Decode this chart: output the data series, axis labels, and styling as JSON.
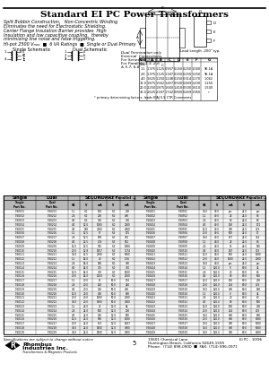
{
  "title": "Standard EI PC Power Transformers",
  "desc1": "Split Bobbin Construction,   Non-Concentric Winding",
  "desc2": "Eliminates the need for Electrostatic Shielding.",
  "desc3": "Center Flange Insulation Barrier provides  High",
  "desc4": "Insulation and low capacitive coupling,  thereby",
  "desc5": "minimizing line noise and false triggering.",
  "desc6": "Hi-pot 2500 Vₘₐₓ  ■  6 VA Ratings  ■  Single or Dual Primary",
  "note1": "Dual Termination only",
  "note2": "External  Connections.",
  "note3": "For Series:   2-3 & 6-7",
  "note4": "For Parallel:  1-3, 2-6",
  "note5": "& 5-7, 6-8",
  "lead_length": "Lead Length .200\" typ.",
  "size_hdr": [
    "Size",
    "A",
    "B",
    "C",
    "D",
    "E",
    "F",
    "G"
  ],
  "size_rows": [
    [
      "(VA)",
      "",
      "",
      "",
      "",
      "",
      "",
      ""
    ],
    [
      "1.1",
      "1.375",
      "1.125",
      "0.937",
      "0.250",
      "0.250",
      "1.000",
      "96.1A"
    ],
    [
      "2.6",
      "1.375",
      "1.125",
      "1.187",
      "0.250",
      "0.250",
      "1.250",
      "96.1A"
    ],
    [
      "4.0",
      "1.625",
      "1.250",
      "1.248",
      "0.250",
      "0.314",
      "1.270",
      "1.062"
    ],
    [
      "12.0",
      "1.875",
      "1.562",
      "1.457",
      "0.500",
      "0.469",
      "1.430",
      "1.250"
    ],
    [
      "20.0",
      "2.250",
      "1.875",
      "1.660",
      "1.418",
      "0.500",
      "1.610",
      "1.500"
    ],
    [
      "36.0",
      "2.625",
      "2.187",
      "1.742",
      "0.800",
      "0.469",
      "1.950",
      "*"
    ],
    [
      "* primary determining factors: leads EIAJ 5.5 CTR Comments"
    ]
  ],
  "main_hdr1_left": "Single",
  "main_hdr1_right": "SECONDARY",
  "main_hdr1_right2": "Parallel",
  "main_hdr1_far": "Single",
  "main_hdr1_far_right": "SECONDARY",
  "main_hdr1_far_right2": "Parallel",
  "col_headers": [
    "Single\nPart No.",
    "Dual\nPart No.",
    "VA",
    "V",
    "-- Secondary --\nmA",
    "V",
    "-- Parallel --\nmA"
  ],
  "data_rows": [
    [
      "T-60101",
      "T-60201",
      "1.1",
      "6.0",
      "100",
      "6.0",
      "200"
    ],
    [
      "T-60102",
      "T-60202",
      "2.6",
      "6.0",
      "200",
      "6.0",
      "400"
    ],
    [
      "T-60103",
      "T-60203",
      "4.0",
      "6.0",
      "350",
      "6.0",
      "700"
    ],
    [
      "T-60104",
      "T-60204",
      "4.0",
      "12.0",
      "1000",
      "6.0",
      "2000"
    ],
    [
      "T-60105",
      "T-60205",
      "4.0",
      "160",
      "2000",
      "6.0",
      "4000"
    ],
    [
      "T-60106",
      "T-60206",
      "1.1",
      "12.0",
      "87",
      "6.3",
      "175"
    ],
    [
      "T-60107",
      "T-60207",
      "2.6",
      "12.5",
      "190",
      "6.3",
      "381"
    ],
    [
      "T-60108",
      "T-60208",
      "4.0",
      "12.5",
      "478",
      "6.3",
      "952"
    ],
    [
      "T-60109",
      "T-60209",
      "12.0",
      "12.5",
      "965",
      "6.3",
      "1906"
    ],
    [
      "T-60110",
      "T-60210",
      "20.0",
      "12.8",
      "1657",
      "6.3",
      "3174"
    ],
    [
      "T-60111",
      "T-60211",
      "36.0",
      "12.5",
      "2800",
      "6.3",
      "6000"
    ],
    [
      "T-60112",
      "T-60212",
      "1.1",
      "14.0",
      "49",
      "6.3",
      "1.56"
    ],
    [
      "T-60113",
      "T-60213",
      "2.6",
      "14.0",
      "160",
      "6.0",
      "300"
    ],
    [
      "T-60114",
      "T-60214",
      "4.0",
      "14.0",
      "375",
      "6.0",
      "750"
    ],
    [
      "T-60115",
      "T-60215",
      "12.0",
      "14.0",
      "750",
      "6.0",
      "1500"
    ],
    [
      "T-60116",
      "T-60216",
      "20.0",
      "14.0",
      "1250",
      "6.0",
      "2500"
    ],
    [
      "T-60117",
      "T-60217",
      "1.1",
      "20.0",
      "55",
      "50.0",
      "110"
    ],
    [
      "T-60118",
      "T-60218",
      "2.6",
      "20.0",
      "120",
      "50.0",
      "240"
    ],
    [
      "T-60119",
      "T-60219",
      "4.0",
      "20.0",
      "200",
      "50.0",
      "400"
    ],
    [
      "T-60120",
      "T-60220",
      "12.0",
      "20.0",
      "400",
      "50.0",
      "800"
    ],
    [
      "T-60121",
      "T-60221",
      "20.0",
      "20.0",
      "1000",
      "50.0",
      "2000"
    ],
    [
      "T-60122",
      "T-60222",
      "36.0",
      "20.0",
      "1000",
      "50.0",
      "2000"
    ],
    [
      "T-60123",
      "T-60223",
      "36.0",
      "20.0",
      "1600",
      "50.0",
      "3000"
    ],
    [
      "T-60124",
      "T-60224",
      "1.1",
      "24.0",
      "45",
      "12.0",
      "84"
    ],
    [
      "T-60125",
      "T-60225",
      "2.6",
      "24.0",
      "500",
      "12.0",
      "2000"
    ],
    [
      "T-60126",
      "T-60226",
      "4.0",
      "24.0",
      "250",
      "12.0",
      "500"
    ],
    [
      "T-60127",
      "T-60227",
      "12.0",
      "24.0",
      "900",
      "12.0",
      "1000"
    ],
    [
      "T-60128",
      "T-60228",
      "20.0",
      "24.0",
      "833",
      "12.0",
      "1667"
    ],
    [
      "T-60129",
      "T-60229",
      "36.0",
      "24.0",
      "1500",
      "12.0",
      "3000"
    ]
  ],
  "data_rows_right": [
    [
      "T-60401",
      "T-60501",
      "36.0",
      "40.0",
      "psc",
      "24.0",
      "psc"
    ],
    [
      "T-60402",
      "T-60502",
      "1.1",
      "40.0",
      "23",
      "24.0",
      "86"
    ],
    [
      "T-60403",
      "T-60503",
      "2.6",
      "40.0",
      "60",
      "24.0",
      "88"
    ],
    [
      "T-60404",
      "T-60504",
      "4.0",
      "40.0",
      "100",
      "24.0",
      "171"
    ],
    [
      "T-60405",
      "T-60505",
      "12.0",
      "40.0",
      "300",
      "24.0",
      "419"
    ],
    [
      "T-60406",
      "T-60506",
      "20.0",
      "40.0",
      "500",
      "24.0",
      "17"
    ],
    [
      "T-60407",
      "T-60507",
      "36.0",
      "40.0",
      "857",
      "24.0",
      "714"
    ],
    [
      "T-60408",
      "T-60508",
      "1.1",
      "48.0",
      "23",
      "24.0",
      "86"
    ],
    [
      "T-60409",
      "T-60509",
      "2.6",
      "48.0",
      "83",
      "24.0",
      "165"
    ],
    [
      "T-60410",
      "T-60510",
      "4.0",
      "48.0",
      "167",
      "24.0",
      "333"
    ],
    [
      "T-60411",
      "T-60511",
      "12.0",
      "48.0",
      "500",
      "24.0",
      "1000"
    ],
    [
      "T-60412",
      "T-60512",
      "20.0",
      "48.0",
      "1000",
      "24.0",
      "6000"
    ],
    [
      "T-60413",
      "T-60513",
      "36.0",
      "48.0",
      "psc",
      "24.0",
      "psc"
    ],
    [
      "T-60414",
      "T-60514",
      "1.1",
      "120.0",
      "9",
      "80.0",
      "34"
    ],
    [
      "T-60415",
      "T-60515",
      "2.6",
      "120.0",
      "20",
      "80.0",
      "60"
    ],
    [
      "T-60416",
      "T-60516",
      "4.0",
      "120.0",
      "80",
      "80.0",
      "500"
    ],
    [
      "T-60417",
      "T-60517",
      "12.0",
      "120.0",
      "100",
      "80.0",
      "200"
    ],
    [
      "T-60418",
      "T-60518",
      "20.0",
      "120.0",
      "214",
      "80.0",
      "419"
    ],
    [
      "T-60419",
      "T-60519",
      "36.0",
      "120.0",
      "300",
      "80.0",
      "800"
    ],
    [
      "T-60420",
      "T-60520",
      "1.1",
      "120.0",
      "9",
      "80.0",
      "34"
    ],
    [
      "T-60421",
      "T-60521",
      "2.6",
      "120.0",
      "20",
      "80.0",
      "60"
    ],
    [
      "T-60422",
      "T-60522",
      "4.0",
      "120.0",
      "80",
      "80.0",
      "500"
    ],
    [
      "T-60423",
      "T-60523",
      "12.0",
      "120.0",
      "100",
      "80.0",
      "200"
    ],
    [
      "T-60424",
      "T-60524",
      "20.0",
      "120.0",
      "214",
      "80.0",
      "419"
    ],
    [
      "T-60425",
      "T-60525",
      "36.0",
      "120.0",
      "300",
      "80.0",
      "800"
    ],
    [
      "T-60426",
      "T-60526",
      "20.0",
      "120.0",
      "300",
      "80.0",
      "6000"
    ],
    [
      "T-60427",
      "T-60527",
      "36.0",
      "120.0",
      "300",
      "80.0",
      "6000"
    ],
    [
      "T-60428",
      "T-60528",
      "36.0",
      "120.0",
      "300",
      "80.0",
      "6000"
    ],
    [
      "T-60429",
      "T-60529",
      "36.0",
      "120.0",
      "300",
      "80.0",
      "6000"
    ]
  ],
  "footer_note": "Specifications are subject to change without notice",
  "page_num": "5",
  "company": "Rhombus\nIndustries Inc.",
  "company_sub": "Transformers & Magnetic Products",
  "address1": "15601 Chemical Lane",
  "address2": "Huntington Beach, California 92649-1595",
  "address3": "Phone:  (714) 898-0900  ■  FAX: (714) 896-0971",
  "part_ref": "EI PC - 10/96",
  "bg": "#ffffff"
}
